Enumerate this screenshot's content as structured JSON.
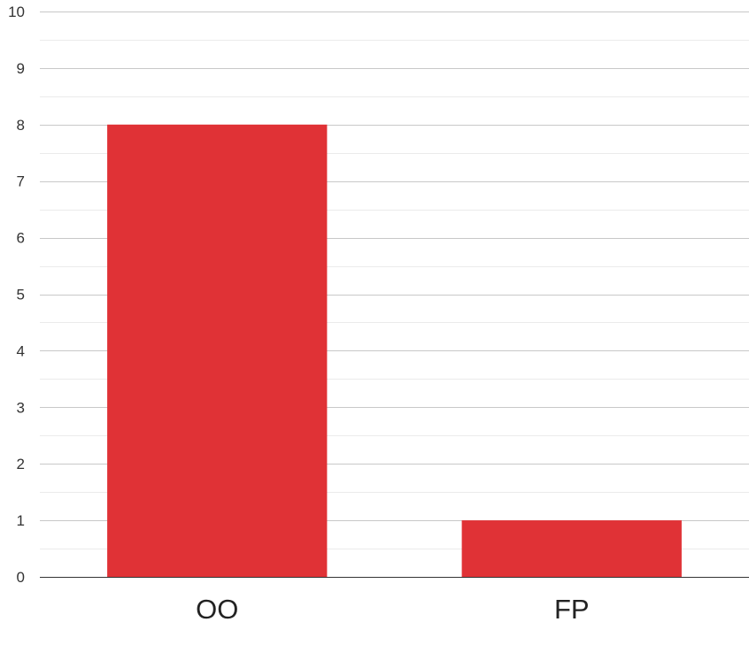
{
  "chart_data": {
    "type": "bar",
    "categories": [
      "OO",
      "FP"
    ],
    "values": [
      8,
      1
    ],
    "ylim": [
      0,
      10
    ],
    "yticks": [
      "0",
      "1",
      "2",
      "3",
      "4",
      "5",
      "6",
      "7",
      "8",
      "9",
      "10"
    ],
    "title": "",
    "xlabel": "",
    "ylabel": "",
    "grid": true,
    "minor_grid": true,
    "legend": "none",
    "colors": {
      "bar": "#e03236",
      "major_grid": "#c8c8c8",
      "minor_grid": "#ebebeb",
      "baseline": "#333333"
    }
  }
}
